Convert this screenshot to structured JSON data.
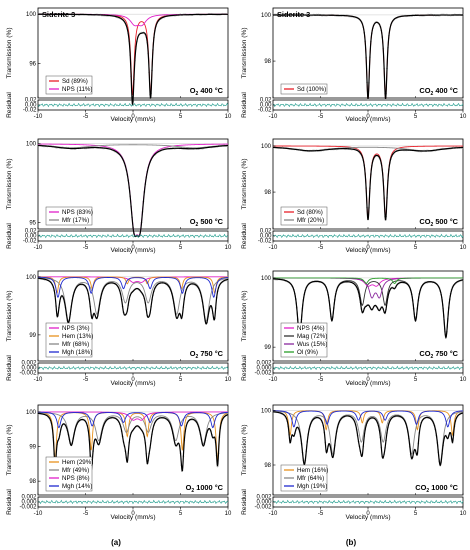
{
  "figure": {
    "panel_labels": [
      "(a)",
      "(b)"
    ]
  },
  "chart_data": [
    {
      "type": "line",
      "panel": "a1",
      "title": "Siderite 3",
      "condition": "O2 400 °C",
      "xlabel": "Velocity (mm/s)",
      "ylabel": "Transmission (%)",
      "residual_label": "Residual",
      "xlim": [
        -10,
        10
      ],
      "xticks": [
        -10,
        -5,
        0,
        5,
        10
      ],
      "ylim": [
        93.2,
        100.5
      ],
      "yticks": [
        96,
        100
      ],
      "residual_ticks": [
        "0.02",
        "0.00",
        "-0.02"
      ],
      "series": [
        {
          "name": "Sd (89%)",
          "color": "#e8202a",
          "sites": [
            {
              "center": -0.05,
              "width": 0.42,
              "depth": 6.5
            },
            {
              "center": 1.85,
              "width": 0.42,
              "depth": 6.5
            }
          ]
        },
        {
          "name": "NPS (11%)",
          "color": "#e020c8",
          "sites": [
            {
              "center": 0.15,
              "width": 1.1,
              "depth": 0.7
            },
            {
              "center": 0.95,
              "width": 1.1,
              "depth": 0.7
            }
          ]
        }
      ]
    },
    {
      "type": "line",
      "panel": "b1",
      "title": "Siderite 3",
      "condition": "CO2 400 °C",
      "xlabel": "Velocity (mm/s)",
      "ylabel": "Transmission (%)",
      "residual_label": "Residual",
      "xlim": [
        -10,
        10
      ],
      "xticks": [
        -10,
        -5,
        0,
        5,
        10
      ],
      "ylim": [
        96.4,
        100.3
      ],
      "yticks": [
        98,
        100
      ],
      "residual_ticks": [
        "0.02",
        "0.00",
        "-0.02"
      ],
      "series": [
        {
          "name": "Sd (100%)",
          "color": "#e8202a",
          "sites": [
            {
              "center": 0.0,
              "width": 0.4,
              "depth": 3.6
            },
            {
              "center": 1.85,
              "width": 0.4,
              "depth": 3.6
            }
          ]
        }
      ]
    },
    {
      "type": "line",
      "panel": "a2",
      "condition": "O2 500 °C",
      "xlabel": "Velocity (mm/s)",
      "ylabel": "Transmission (%)",
      "residual_label": "Residual",
      "xlim": [
        -10,
        10
      ],
      "xticks": [
        -10,
        -5,
        0,
        5,
        10
      ],
      "ylim": [
        94.6,
        100.3
      ],
      "yticks": [
        95,
        100
      ],
      "residual_ticks": [
        "0.02",
        "0.00",
        "-0.02"
      ],
      "series": [
        {
          "name": "NPS (83%)",
          "color": "#e020c8",
          "sites": [
            {
              "center": 0.1,
              "width": 1.0,
              "depth": 4.1
            },
            {
              "center": 0.75,
              "width": 1.0,
              "depth": 4.1
            }
          ]
        },
        {
          "name": "Mfr (17%)",
          "color": "#888888",
          "sites": [
            {
              "center": -6.5,
              "width": 5.0,
              "depth": 0.25
            },
            {
              "center": 6.5,
              "width": 5.0,
              "depth": 0.25
            }
          ]
        }
      ]
    },
    {
      "type": "line",
      "panel": "b2",
      "condition": "CO2 500 °C",
      "xlabel": "Velocity (mm/s)",
      "ylabel": "Transmission (%)",
      "residual_label": "Residual",
      "xlim": [
        -10,
        10
      ],
      "xticks": [
        -10,
        -5,
        0,
        5,
        10
      ],
      "ylim": [
        96.4,
        100.3
      ],
      "yticks": [
        98,
        100
      ],
      "residual_ticks": [
        "0.02",
        "0.00",
        "-0.02"
      ],
      "series": [
        {
          "name": "Sd (80%)",
          "color": "#e8202a",
          "sites": [
            {
              "center": 0.0,
              "width": 0.45,
              "depth": 3.1
            },
            {
              "center": 1.85,
              "width": 0.45,
              "depth": 3.1
            }
          ]
        },
        {
          "name": "Mfr (20%)",
          "color": "#888888",
          "sites": [
            {
              "center": -6.0,
              "width": 5.0,
              "depth": 0.2
            },
            {
              "center": 6.0,
              "width": 5.0,
              "depth": 0.2
            }
          ]
        }
      ]
    },
    {
      "type": "line",
      "panel": "a3",
      "condition": "O2 750 °C",
      "xlabel": "Velocity (mm/s)",
      "ylabel": "Transmission (%)",
      "residual_label": "Residual",
      "xlim": [
        -10,
        10
      ],
      "xticks": [
        -10,
        -5,
        0,
        5,
        10
      ],
      "ylim": [
        98.55,
        100.1
      ],
      "yticks": [
        99,
        100
      ],
      "residual_ticks": [
        "0.002",
        "0.000",
        "-0.002"
      ],
      "series": [
        {
          "name": "NPS (3%)",
          "color": "#e020c8",
          "sites": [
            {
              "center": 0.0,
              "width": 0.9,
              "depth": 0.08
            },
            {
              "center": 0.9,
              "width": 0.9,
              "depth": 0.08
            }
          ]
        },
        {
          "name": "Hem (13%)",
          "color": "#e8921e",
          "sites": [
            {
              "center": -8.0,
              "width": 0.35,
              "depth": 0.28
            },
            {
              "center": -4.3,
              "width": 0.35,
              "depth": 0.2
            },
            {
              "center": -0.6,
              "width": 0.35,
              "depth": 0.12
            },
            {
              "center": 1.5,
              "width": 0.35,
              "depth": 0.12
            },
            {
              "center": 5.1,
              "width": 0.35,
              "depth": 0.2
            },
            {
              "center": 8.6,
              "width": 0.35,
              "depth": 0.28
            }
          ]
        },
        {
          "name": "Mfr (68%)",
          "color": "#888888",
          "sites": [
            {
              "center": -6.8,
              "width": 0.8,
              "depth": 0.75
            },
            {
              "center": -3.8,
              "width": 0.8,
              "depth": 0.62
            },
            {
              "center": -0.8,
              "width": 0.8,
              "depth": 0.42
            },
            {
              "center": 1.6,
              "width": 0.8,
              "depth": 0.42
            },
            {
              "center": 4.6,
              "width": 0.8,
              "depth": 0.62
            },
            {
              "center": 7.7,
              "width": 0.8,
              "depth": 0.75
            }
          ]
        },
        {
          "name": "Mgh (18%)",
          "color": "#1f2ad0",
          "sites": [
            {
              "center": -7.9,
              "width": 0.5,
              "depth": 0.35
            },
            {
              "center": -4.4,
              "width": 0.5,
              "depth": 0.28
            },
            {
              "center": -1.0,
              "width": 0.5,
              "depth": 0.2
            },
            {
              "center": 1.8,
              "width": 0.5,
              "depth": 0.2
            },
            {
              "center": 5.2,
              "width": 0.5,
              "depth": 0.28
            },
            {
              "center": 8.5,
              "width": 0.5,
              "depth": 0.35
            }
          ]
        }
      ]
    },
    {
      "type": "line",
      "panel": "b3",
      "condition": "CO2 750 °C",
      "xlabel": "Velocity (mm/s)",
      "ylabel": "Transmission (%)",
      "residual_label": "Residual",
      "xlim": [
        -10,
        10
      ],
      "xticks": [
        -10,
        -5,
        0,
        5,
        10
      ],
      "ylim": [
        98.8,
        100.1
      ],
      "yticks": [
        99,
        100
      ],
      "residual_ticks": [
        "0.002",
        "0.000",
        "-0.002"
      ],
      "series": [
        {
          "name": "NPS (4%)",
          "color": "#e020c8",
          "sites": [
            {
              "center": 0.0,
              "width": 0.9,
              "depth": 0.1
            },
            {
              "center": 0.9,
              "width": 0.9,
              "depth": 0.1
            }
          ]
        },
        {
          "name": "Mag (72%)",
          "color": "#333333",
          "sites": [
            {
              "center": -7.2,
              "width": 0.6,
              "depth": 0.85
            },
            {
              "center": -3.8,
              "width": 0.6,
              "depth": 0.6
            },
            {
              "center": -0.6,
              "width": 0.6,
              "depth": 0.38
            },
            {
              "center": 1.8,
              "width": 0.6,
              "depth": 0.38
            },
            {
              "center": 5.0,
              "width": 0.6,
              "depth": 0.6
            },
            {
              "center": 8.2,
              "width": 0.6,
              "depth": 0.85
            }
          ]
        },
        {
          "name": "Wus (15%)",
          "color": "#8a2a9e",
          "sites": [
            {
              "center": 0.4,
              "width": 0.7,
              "depth": 0.25
            },
            {
              "center": 1.2,
              "width": 0.7,
              "depth": 0.25
            }
          ]
        },
        {
          "name": "Ol (9%)",
          "color": "#2a9e2a",
          "sites": [
            {
              "center": -0.2,
              "width": 0.5,
              "depth": 0.08
            },
            {
              "center": 2.8,
              "width": 0.5,
              "depth": 0.08
            }
          ]
        }
      ]
    },
    {
      "type": "line",
      "panel": "a4",
      "condition": "O2 1000 °C",
      "xlabel": "Velocity (mm/s)",
      "ylabel": "Transmission (%)",
      "residual_label": "Residual",
      "xlim": [
        -10,
        10
      ],
      "xticks": [
        -10,
        -5,
        0,
        5,
        10
      ],
      "ylim": [
        97.6,
        100.2
      ],
      "yticks": [
        98,
        99,
        100
      ],
      "residual_ticks": [
        "0.002",
        "0.000",
        "-0.002"
      ],
      "series": [
        {
          "name": "Hem (29%)",
          "color": "#e8921e",
          "sites": [
            {
              "center": -8.2,
              "width": 0.35,
              "depth": 1.4
            },
            {
              "center": -4.4,
              "width": 0.35,
              "depth": 1.1
            },
            {
              "center": -0.6,
              "width": 0.35,
              "depth": 0.7
            },
            {
              "center": 1.5,
              "width": 0.35,
              "depth": 0.7
            },
            {
              "center": 5.2,
              "width": 0.35,
              "depth": 1.1
            },
            {
              "center": 8.9,
              "width": 0.35,
              "depth": 1.4
            }
          ]
        },
        {
          "name": "Mfr (49%)",
          "color": "#888888",
          "sites": [
            {
              "center": -6.5,
              "width": 0.8,
              "depth": 0.9
            },
            {
              "center": -3.6,
              "width": 0.8,
              "depth": 0.8
            },
            {
              "center": -0.7,
              "width": 0.8,
              "depth": 0.55
            },
            {
              "center": 1.6,
              "width": 0.8,
              "depth": 0.55
            },
            {
              "center": 4.5,
              "width": 0.8,
              "depth": 0.8
            },
            {
              "center": 7.4,
              "width": 0.8,
              "depth": 0.9
            }
          ]
        },
        {
          "name": "NPS (8%)",
          "color": "#e020c8",
          "sites": [
            {
              "center": 0.0,
              "width": 0.9,
              "depth": 0.2
            },
            {
              "center": 0.9,
              "width": 0.9,
              "depth": 0.2
            }
          ]
        },
        {
          "name": "Mgh (14%)",
          "color": "#1f2ad0",
          "sites": [
            {
              "center": -7.8,
              "width": 0.5,
              "depth": 0.45
            },
            {
              "center": -4.3,
              "width": 0.5,
              "depth": 0.4
            },
            {
              "center": -1.0,
              "width": 0.5,
              "depth": 0.3
            },
            {
              "center": 1.8,
              "width": 0.5,
              "depth": 0.3
            },
            {
              "center": 5.1,
              "width": 0.5,
              "depth": 0.4
            },
            {
              "center": 8.4,
              "width": 0.5,
              "depth": 0.45
            }
          ]
        }
      ]
    },
    {
      "type": "line",
      "panel": "b4",
      "condition": "CO2 1000 °C",
      "xlabel": "Velocity (mm/s)",
      "ylabel": "Transmission (%)",
      "residual_label": "Residual",
      "xlim": [
        -10,
        10
      ],
      "xticks": [
        -10,
        -5,
        0,
        5,
        10
      ],
      "ylim": [
        96.9,
        100.2
      ],
      "yticks": [
        98,
        100
      ],
      "residual_ticks": [
        "0.002",
        "0.000",
        "-0.002"
      ],
      "series": [
        {
          "name": "Hem (16%)",
          "color": "#e8921e",
          "sites": [
            {
              "center": -8.2,
              "width": 0.35,
              "depth": 0.9
            },
            {
              "center": -4.4,
              "width": 0.35,
              "depth": 0.7
            },
            {
              "center": -0.6,
              "width": 0.35,
              "depth": 0.45
            },
            {
              "center": 1.5,
              "width": 0.35,
              "depth": 0.45
            },
            {
              "center": 5.2,
              "width": 0.35,
              "depth": 0.7
            },
            {
              "center": 8.9,
              "width": 0.35,
              "depth": 0.9
            }
          ]
        },
        {
          "name": "Mfr (64%)",
          "color": "#888888",
          "sites": [
            {
              "center": -6.7,
              "width": 0.7,
              "depth": 1.9
            },
            {
              "center": -3.7,
              "width": 0.7,
              "depth": 1.55
            },
            {
              "center": -0.7,
              "width": 0.7,
              "depth": 1.1
            },
            {
              "center": 1.6,
              "width": 0.7,
              "depth": 1.1
            },
            {
              "center": 4.6,
              "width": 0.7,
              "depth": 1.55
            },
            {
              "center": 7.6,
              "width": 0.7,
              "depth": 1.9
            }
          ]
        },
        {
          "name": "Mgh (19%)",
          "color": "#1f2ad0",
          "sites": [
            {
              "center": -7.8,
              "width": 0.5,
              "depth": 0.6
            },
            {
              "center": -4.3,
              "width": 0.5,
              "depth": 0.5
            },
            {
              "center": -1.0,
              "width": 0.5,
              "depth": 0.35
            },
            {
              "center": 1.8,
              "width": 0.5,
              "depth": 0.35
            },
            {
              "center": 5.1,
              "width": 0.5,
              "depth": 0.5
            },
            {
              "center": 8.4,
              "width": 0.5,
              "depth": 0.6
            }
          ]
        }
      ]
    }
  ]
}
